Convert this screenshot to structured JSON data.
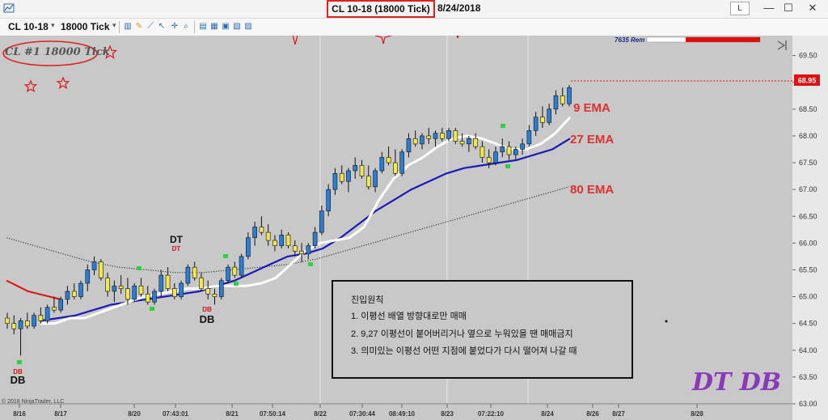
{
  "window": {
    "title": "CL 10-18 (18000 Tick)",
    "date": "8/24/2018",
    "layout_button": "L",
    "minimize": "—",
    "maximize": "☐",
    "close": "✕"
  },
  "toolbar": {
    "instrument": "CL 10-18",
    "interval": "18000 Tick"
  },
  "chart_label": "CL #1 18000 Tick",
  "rem_badge": "7635 Rem",
  "copyright": "© 2018 NinjaTrader, LLC",
  "price_marker": "68.95",
  "ema_labels": {
    "ema9": "9 EMA",
    "ema27": "27 EMA",
    "ema80": "80 EMA"
  },
  "big_text": "DT  DB",
  "note": {
    "title": "진입원칙",
    "line1": "1. 이평선 배열 방향대로만 매매",
    "line2": "2. 9,27 이평선이 붙어버리거나   옆으로 누워있을 땐 매매금지",
    "line3": "3. 의미있는 이평선 어떤 지점에 붙었다가 다시 떨어져 나갈 때"
  },
  "markers": {
    "dt": "DT",
    "db": "DB"
  },
  "chart_data": {
    "type": "candlestick",
    "y_ticks": [
      "69.50",
      "69.00",
      "68.50",
      "68.00",
      "67.50",
      "67.00",
      "66.50",
      "66.00",
      "65.50",
      "65.00",
      "64.50",
      "64.00",
      "63.50",
      "63.00"
    ],
    "ylim": [
      63.0,
      69.6
    ],
    "x_labels": [
      "8/16",
      "8/17",
      "8/20",
      "07:43:01",
      "8/21",
      "07:50:14",
      "8/22",
      "07:30:44",
      "08:49:10",
      "8/23",
      "07:22:10",
      "8/24",
      "8/26",
      "8/27",
      "8/28"
    ],
    "colors": {
      "bull": "#2a7fd4",
      "bear": "#f2e84a",
      "ema9": "#ffffff",
      "ema27": "#1a1ab8",
      "ema80": "#555555",
      "red_ma": "#e01010",
      "background": "#c8c8c8"
    },
    "candles": [
      [
        64.6,
        64.7,
        64.4,
        64.5
      ],
      [
        64.5,
        64.65,
        64.3,
        64.4
      ],
      [
        64.4,
        64.6,
        63.9,
        64.55
      ],
      [
        64.55,
        64.7,
        64.4,
        64.45
      ],
      [
        64.45,
        64.7,
        64.4,
        64.65
      ],
      [
        64.65,
        64.8,
        64.5,
        64.55
      ],
      [
        64.55,
        64.85,
        64.5,
        64.8
      ],
      [
        64.8,
        65.0,
        64.7,
        64.75
      ],
      [
        64.75,
        65.0,
        64.7,
        64.95
      ],
      [
        64.95,
        65.2,
        64.85,
        65.1
      ],
      [
        65.1,
        65.25,
        64.95,
        65.0
      ],
      [
        65.0,
        65.3,
        64.95,
        65.25
      ],
      [
        65.25,
        65.6,
        65.1,
        65.5
      ],
      [
        65.5,
        65.75,
        65.4,
        65.65
      ],
      [
        65.65,
        65.7,
        65.3,
        65.35
      ],
      [
        65.35,
        65.45,
        65.0,
        65.1
      ],
      [
        65.1,
        65.3,
        64.9,
        65.2
      ],
      [
        65.2,
        65.4,
        65.05,
        65.15
      ],
      [
        65.15,
        65.35,
        64.85,
        64.95
      ],
      [
        64.95,
        65.25,
        64.9,
        65.2
      ],
      [
        65.2,
        65.35,
        65.0,
        65.05
      ],
      [
        65.05,
        65.2,
        64.85,
        64.9
      ],
      [
        64.9,
        65.15,
        64.85,
        65.1
      ],
      [
        65.1,
        65.5,
        65.0,
        65.4
      ],
      [
        65.4,
        65.55,
        65.1,
        65.15
      ],
      [
        65.15,
        65.25,
        64.95,
        65.0
      ],
      [
        65.0,
        65.3,
        64.95,
        65.25
      ],
      [
        65.25,
        65.6,
        65.2,
        65.55
      ],
      [
        65.55,
        65.65,
        65.3,
        65.35
      ],
      [
        65.35,
        65.45,
        65.1,
        65.15
      ],
      [
        65.15,
        65.3,
        64.95,
        65.05
      ],
      [
        65.05,
        65.15,
        64.85,
        65.0
      ],
      [
        65.0,
        65.35,
        64.95,
        65.3
      ],
      [
        65.3,
        65.6,
        65.25,
        65.55
      ],
      [
        65.55,
        65.65,
        65.35,
        65.4
      ],
      [
        65.4,
        65.8,
        65.35,
        65.75
      ],
      [
        65.75,
        66.2,
        65.7,
        66.1
      ],
      [
        66.1,
        66.4,
        65.95,
        66.3
      ],
      [
        66.3,
        66.5,
        66.15,
        66.2
      ],
      [
        66.2,
        66.35,
        65.95,
        66.05
      ],
      [
        66.05,
        66.15,
        65.85,
        65.95
      ],
      [
        65.95,
        66.25,
        65.9,
        66.15
      ],
      [
        66.15,
        66.2,
        65.9,
        65.95
      ],
      [
        65.95,
        66.05,
        65.75,
        65.85
      ],
      [
        65.85,
        66.0,
        65.65,
        65.8
      ],
      [
        65.8,
        66.0,
        65.7,
        65.95
      ],
      [
        65.95,
        66.3,
        65.9,
        66.2
      ],
      [
        66.2,
        66.7,
        66.15,
        66.6
      ],
      [
        66.6,
        67.1,
        66.5,
        67.0
      ],
      [
        67.0,
        67.4,
        66.9,
        67.3
      ],
      [
        67.3,
        67.45,
        67.1,
        67.15
      ],
      [
        67.15,
        67.4,
        66.95,
        67.35
      ],
      [
        67.35,
        67.6,
        67.2,
        67.45
      ],
      [
        67.45,
        67.55,
        67.2,
        67.25
      ],
      [
        67.25,
        67.45,
        67.0,
        67.05
      ],
      [
        67.05,
        67.4,
        66.95,
        67.35
      ],
      [
        67.35,
        67.7,
        67.3,
        67.6
      ],
      [
        67.6,
        67.8,
        67.45,
        67.5
      ],
      [
        67.5,
        67.75,
        67.25,
        67.3
      ],
      [
        67.3,
        67.75,
        67.25,
        67.7
      ],
      [
        67.7,
        68.05,
        67.6,
        67.95
      ],
      [
        67.95,
        68.1,
        67.8,
        67.85
      ],
      [
        67.85,
        68.05,
        67.75,
        68.0
      ],
      [
        68.0,
        68.15,
        67.85,
        67.95
      ],
      [
        67.95,
        68.1,
        67.8,
        68.05
      ],
      [
        68.05,
        68.15,
        67.9,
        67.95
      ],
      [
        67.95,
        68.15,
        67.9,
        68.1
      ],
      [
        68.1,
        68.15,
        67.85,
        67.9
      ],
      [
        67.9,
        68.05,
        67.8,
        67.85
      ],
      [
        67.85,
        68.0,
        67.7,
        67.95
      ],
      [
        67.95,
        68.05,
        67.75,
        67.8
      ],
      [
        67.8,
        67.9,
        67.5,
        67.6
      ],
      [
        67.6,
        67.75,
        67.4,
        67.5
      ],
      [
        67.5,
        67.8,
        67.45,
        67.7
      ],
      [
        67.7,
        67.95,
        67.6,
        67.8
      ],
      [
        67.8,
        67.9,
        67.55,
        67.65
      ],
      [
        67.65,
        67.8,
        67.55,
        67.75
      ],
      [
        67.75,
        67.95,
        67.65,
        67.85
      ],
      [
        67.85,
        68.2,
        67.8,
        68.1
      ],
      [
        68.1,
        68.45,
        68.0,
        68.35
      ],
      [
        68.35,
        68.55,
        68.15,
        68.25
      ],
      [
        68.25,
        68.6,
        68.2,
        68.5
      ],
      [
        68.5,
        68.85,
        68.4,
        68.75
      ],
      [
        68.75,
        68.9,
        68.55,
        68.6
      ],
      [
        68.6,
        68.95,
        68.55,
        68.9
      ]
    ],
    "ema9": [
      64.5,
      64.5,
      64.6,
      64.6,
      64.7,
      64.8,
      64.9,
      65.0,
      65.05,
      65.1,
      65.15,
      65.15,
      65.2,
      65.2,
      65.2,
      65.25,
      65.35,
      65.6,
      65.85,
      66.0,
      66.05,
      66.1,
      66.3,
      66.8,
      67.2,
      67.45,
      67.6,
      67.8,
      67.95,
      68.0,
      67.95,
      67.85,
      67.75,
      67.75,
      67.85,
      68.05,
      68.35
    ],
    "ema27": [
      64.55,
      64.6,
      64.65,
      64.75,
      64.85,
      64.9,
      64.95,
      65.0,
      65.05,
      65.1,
      65.2,
      65.3,
      65.45,
      65.6,
      65.75,
      65.8,
      65.9,
      66.1,
      66.35,
      66.6,
      66.8,
      67.0,
      67.15,
      67.3,
      67.4,
      67.45,
      67.5,
      67.55,
      67.65,
      67.75,
      67.95
    ],
    "ema80": [
      66.1,
      65.95,
      65.8,
      65.65,
      65.55,
      65.5,
      65.45,
      65.45,
      65.5,
      65.55,
      65.6,
      65.7,
      65.85,
      66.0,
      66.15,
      66.3,
      66.45,
      66.6,
      66.75,
      66.9,
      67.05
    ],
    "red_ma": [
      65.3,
      65.2,
      65.1,
      65.05,
      65.0,
      64.95
    ]
  }
}
